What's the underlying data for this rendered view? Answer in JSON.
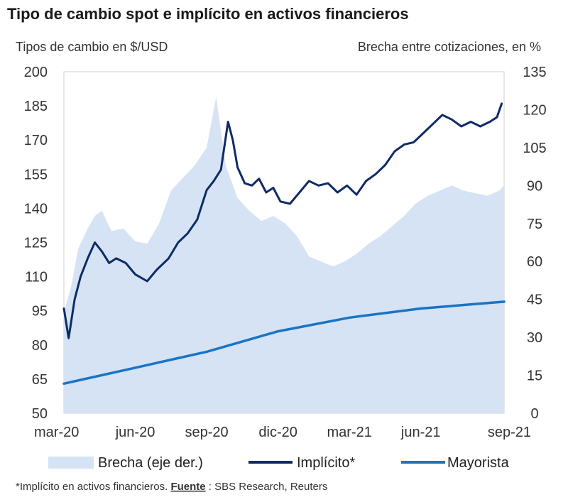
{
  "chart_data": {
    "type": "line",
    "title": "Tipo de cambio spot e implícito en activos financieros",
    "ylabel_left": "Tipos de cambio en $/USD",
    "ylabel_right": "Brecha entre cotizaciones, en %",
    "x_ticks": [
      "mar-20",
      "jun-20",
      "sep-20",
      "dic-20",
      "mar-21",
      "jun-21",
      "sep-21"
    ],
    "y_left_ticks": [
      200,
      185,
      170,
      155,
      140,
      125,
      110,
      95,
      80,
      65,
      50
    ],
    "y_right_ticks": [
      135,
      120,
      105,
      90,
      75,
      60,
      45,
      30,
      15,
      0
    ],
    "ylim_left": [
      50,
      200
    ],
    "ylim_right": [
      0,
      135
    ],
    "x_range_months": [
      0,
      18.5
    ],
    "series": [
      {
        "name": "Brecha (eje der.)",
        "axis": "right",
        "kind": "area",
        "color": "#d5e3f5",
        "x": [
          0,
          0.3,
          0.6,
          1.0,
          1.3,
          1.6,
          2.0,
          2.5,
          3.0,
          3.5,
          4.0,
          4.5,
          5.0,
          5.5,
          6.0,
          6.4,
          6.8,
          7.3,
          7.8,
          8.3,
          8.8,
          9.3,
          9.8,
          10.3,
          10.8,
          11.3,
          11.8,
          12.3,
          12.8,
          13.3,
          13.8,
          14.3,
          14.8,
          15.3,
          15.8,
          16.3,
          16.8,
          17.3,
          17.8,
          18.3,
          18.5
        ],
        "values": [
          40,
          50,
          65,
          73,
          78,
          80,
          72,
          73,
          68,
          67,
          75,
          88,
          93,
          98,
          105,
          125,
          98,
          85,
          80,
          76,
          78,
          75,
          70,
          62,
          60,
          58,
          60,
          63,
          67,
          70,
          74,
          78,
          83,
          86,
          88,
          90,
          88,
          87,
          86,
          88,
          90
        ]
      },
      {
        "name": "Implícito*",
        "axis": "left",
        "kind": "line",
        "color": "#0f2b66",
        "x": [
          0,
          0.2,
          0.45,
          0.7,
          1.0,
          1.3,
          1.6,
          1.9,
          2.2,
          2.6,
          3.0,
          3.5,
          3.9,
          4.4,
          4.8,
          5.2,
          5.6,
          6.0,
          6.3,
          6.6,
          6.9,
          7.1,
          7.3,
          7.6,
          7.9,
          8.2,
          8.5,
          8.8,
          9.1,
          9.5,
          9.9,
          10.3,
          10.7,
          11.1,
          11.5,
          11.9,
          12.3,
          12.7,
          13.1,
          13.5,
          13.9,
          14.3,
          14.7,
          15.1,
          15.5,
          15.9,
          16.3,
          16.7,
          17.1,
          17.5,
          17.9,
          18.2,
          18.4
        ],
        "values": [
          96,
          83,
          100,
          110,
          118,
          125,
          121,
          116,
          118,
          116,
          111,
          108,
          113,
          118,
          125,
          129,
          135,
          148,
          152,
          157,
          178,
          170,
          158,
          151,
          150,
          153,
          147,
          149,
          143,
          142,
          147,
          152,
          150,
          151,
          147,
          150,
          146,
          152,
          155,
          159,
          165,
          168,
          169,
          173,
          177,
          181,
          179,
          176,
          178,
          176,
          178,
          180,
          186
        ]
      },
      {
        "name": "Mayorista",
        "axis": "left",
        "kind": "line",
        "color": "#1a74c4",
        "x": [
          0,
          3,
          6,
          9,
          12,
          15,
          18.5
        ],
        "values": [
          63,
          70,
          77,
          86,
          92,
          96,
          99
        ]
      }
    ],
    "legend": [
      "Brecha (eje der.)",
      "Implícito*",
      "Mayorista"
    ],
    "legend_position": "bottom"
  },
  "footnote": {
    "note": "*Implícito en activos financieros.",
    "source_label": "Fuente",
    "source_text": "SBS Research, Reuters"
  }
}
